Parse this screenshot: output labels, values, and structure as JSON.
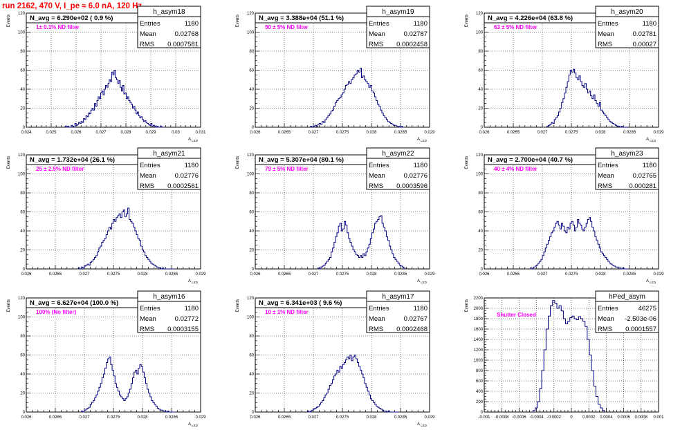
{
  "page": {
    "title": "run 2162,   470 V, I_pe ≈ 6.0 nA, 120 Hz"
  },
  "chart_data": [
    {
      "type": "histogram",
      "name": "h_asym18",
      "avg_label": "N_avg = 6.290e+02 ( 0.9 %)",
      "filter_label": "1± 0.1% ND filter",
      "stats": {
        "Entries": "1180",
        "Mean": "0.02768",
        "RMS": "0.0007581"
      },
      "ylabel": "Events",
      "xlabel": "A_LED",
      "xlim": [
        0.024,
        0.031
      ],
      "ylim": [
        0,
        120
      ],
      "xmajor": 0.001,
      "xtick_labels": [
        "0.024",
        "0.025",
        "0.026",
        "0.027",
        "0.028",
        "0.029",
        "0.03",
        "0.031"
      ],
      "ytick_labels": [
        "0",
        "20",
        "40",
        "60",
        "80",
        "100",
        "120"
      ],
      "bin_edges": [
        0.02556,
        0.02954
      ],
      "values": [
        1,
        0,
        1,
        0,
        0,
        2,
        1,
        0,
        4,
        2,
        3,
        5,
        4,
        6,
        5,
        9,
        8,
        12,
        11,
        15,
        14,
        18,
        20,
        18,
        25,
        22,
        28,
        32,
        30,
        36,
        38,
        34,
        40,
        44,
        42,
        46,
        50,
        48,
        58,
        55,
        60,
        52,
        50,
        46,
        49,
        42,
        38,
        44,
        35,
        36,
        30,
        32,
        28,
        26,
        24,
        20,
        22,
        18,
        14,
        16,
        12,
        10,
        11,
        8,
        6,
        7,
        5,
        4,
        3,
        2,
        4,
        1,
        2,
        1,
        0,
        1,
        0,
        0,
        1,
        0,
        0
      ]
    },
    {
      "type": "histogram",
      "name": "h_asym19",
      "avg_label": "N_avg = 3.388e+04 (51.1 %)",
      "filter_label": "50 ± 5% ND filter",
      "stats": {
        "Entries": "1180",
        "Mean": "0.02787",
        "RMS": "0.0002458"
      },
      "ylabel": "Events",
      "xlabel": "A_LED",
      "xlim": [
        0.026,
        0.029
      ],
      "ylim": [
        0,
        120
      ],
      "xmajor": 0.0005,
      "xtick_labels": [
        "0.026",
        "0.0265",
        "0.027",
        "0.0275",
        "0.028",
        "0.0285",
        "0.029"
      ],
      "ytick_labels": [
        "0",
        "20",
        "40",
        "60",
        "80",
        "100",
        "120"
      ],
      "bin_edges": [
        0.02695,
        0.02858
      ],
      "values": [
        1,
        0,
        1,
        2,
        1,
        3,
        4,
        3,
        6,
        5,
        8,
        10,
        12,
        14,
        17,
        18,
        22,
        26,
        28,
        30,
        31,
        34,
        36,
        40,
        44,
        45,
        48,
        46,
        50,
        52,
        55,
        56,
        60,
        58,
        62,
        52,
        54,
        50,
        48,
        46,
        42,
        44,
        38,
        36,
        32,
        28,
        24,
        22,
        18,
        15,
        12,
        10,
        8,
        6,
        5,
        4,
        3,
        2,
        2,
        1,
        1,
        0,
        1,
        0,
        0
      ]
    },
    {
      "type": "histogram",
      "name": "h_asym20",
      "avg_label": "N_avg = 4.226e+04 (63.8 %)",
      "filter_label": "63 ± 5% ND filter",
      "stats": {
        "Entries": "1180",
        "Mean": "0.02781",
        "RMS": "0.00027"
      },
      "ylabel": "Events",
      "xlabel": "A_LED",
      "xlim": [
        0.026,
        0.029
      ],
      "ylim": [
        0,
        120
      ],
      "xmajor": 0.0005,
      "xtick_labels": [
        "0.026",
        "0.0265",
        "0.027",
        "0.0275",
        "0.028",
        "0.0285",
        "0.029"
      ],
      "ytick_labels": [
        "0",
        "20",
        "40",
        "60",
        "80",
        "100",
        "120"
      ],
      "bin_edges": [
        0.02708,
        0.02848
      ],
      "values": [
        1,
        2,
        3,
        5,
        4,
        8,
        10,
        12,
        16,
        20,
        26,
        30,
        36,
        42,
        48,
        55,
        60,
        58,
        61,
        57,
        52,
        50,
        54,
        48,
        44,
        42,
        46,
        40,
        36,
        38,
        33,
        30,
        34,
        28,
        25,
        22,
        26,
        18,
        16,
        14,
        12,
        10,
        8,
        6,
        5,
        4,
        3,
        2,
        1,
        1,
        0,
        1,
        0,
        0,
        0,
        0
      ]
    },
    {
      "type": "histogram",
      "name": "h_asym21",
      "avg_label": "N_avg = 1.732e+04 (26.1 %)",
      "filter_label": "25 ± 2.5% ND filter",
      "stats": {
        "Entries": "1180",
        "Mean": "0.02776",
        "RMS": "0.0002561"
      },
      "ylabel": "Events",
      "xlabel": "A_LED",
      "xlim": [
        0.026,
        0.029
      ],
      "ylim": [
        0,
        120
      ],
      "xmajor": 0.0005,
      "xtick_labels": [
        "0.026",
        "0.0265",
        "0.027",
        "0.0275",
        "0.028",
        "0.0285",
        "0.029"
      ],
      "ytick_labels": [
        "0",
        "20",
        "40",
        "60",
        "80",
        "100",
        "120"
      ],
      "bin_edges": [
        0.0269,
        0.02854
      ],
      "values": [
        1,
        0,
        2,
        1,
        3,
        4,
        5,
        4,
        7,
        8,
        10,
        12,
        14,
        18,
        22,
        24,
        28,
        30,
        32,
        36,
        40,
        44,
        42,
        48,
        52,
        50,
        54,
        56,
        58,
        54,
        60,
        62,
        55,
        58,
        64,
        52,
        50,
        48,
        44,
        40,
        36,
        32,
        30,
        24,
        20,
        18,
        14,
        12,
        10,
        8,
        6,
        5,
        4,
        3,
        2,
        1,
        1,
        0,
        1,
        0,
        0,
        0,
        0,
        0,
        0,
        0
      ]
    },
    {
      "type": "histogram",
      "name": "h_asym22",
      "avg_label": "N_avg = 5.307e+04 (80.1 %)",
      "filter_label": "79 ± 5% ND filter",
      "stats": {
        "Entries": "1180",
        "Mean": "0.02776",
        "RMS": "0.0003596"
      },
      "ylabel": "Events",
      "xlabel": "A_LED",
      "xlim": [
        0.026,
        0.029
      ],
      "ylim": [
        0,
        120
      ],
      "xmajor": 0.0005,
      "xtick_labels": [
        "0.026",
        "0.0265",
        "0.027",
        "0.0275",
        "0.028",
        "0.0285",
        "0.029"
      ],
      "ytick_labels": [
        "0",
        "20",
        "40",
        "60",
        "80",
        "100",
        "120"
      ],
      "bin_edges": [
        0.02708,
        0.02858
      ],
      "values": [
        1,
        0,
        2,
        3,
        4,
        6,
        8,
        10,
        12,
        18,
        22,
        28,
        34,
        38,
        45,
        48,
        40,
        42,
        50,
        46,
        38,
        32,
        28,
        24,
        20,
        18,
        15,
        14,
        12,
        14,
        12,
        16,
        14,
        18,
        22,
        26,
        32,
        38,
        42,
        48,
        50,
        52,
        55,
        56,
        48,
        44,
        40,
        34,
        30,
        24,
        20,
        16,
        12,
        10,
        8,
        6,
        4,
        3,
        2,
        1
      ]
    },
    {
      "type": "histogram",
      "name": "h_asym23",
      "avg_label": "N_avg = 2.700e+04 (40.7 %)",
      "filter_label": "40 ± 4% ND filter",
      "stats": {
        "Entries": "1180",
        "Mean": "0.02765",
        "RMS": "0.000281"
      },
      "ylabel": "Events",
      "xlabel": "A_LED",
      "xlim": [
        0.026,
        0.029
      ],
      "ylim": [
        0,
        120
      ],
      "xmajor": 0.0005,
      "xtick_labels": [
        "0.026",
        "0.0265",
        "0.027",
        "0.0275",
        "0.028",
        "0.0285",
        "0.029"
      ],
      "ytick_labels": [
        "0",
        "20",
        "40",
        "60",
        "80",
        "100",
        "120"
      ],
      "bin_edges": [
        0.0268,
        0.02848
      ],
      "values": [
        1,
        0,
        2,
        3,
        4,
        6,
        8,
        10,
        14,
        18,
        22,
        26,
        30,
        34,
        38,
        40,
        44,
        48,
        50,
        46,
        42,
        48,
        45,
        40,
        38,
        44,
        42,
        48,
        50,
        46,
        40,
        44,
        52,
        48,
        46,
        42,
        40,
        44,
        48,
        52,
        54,
        50,
        44,
        40,
        34,
        30,
        26,
        22,
        18,
        16,
        14,
        12,
        10,
        8,
        6,
        5,
        4,
        3,
        2,
        2,
        1,
        1,
        0,
        1,
        0,
        0,
        0
      ]
    },
    {
      "type": "histogram",
      "name": "h_asym16",
      "avg_label": "N_avg = 6.627e+04 (100.0 %)",
      "filter_label": "100% (No filter)",
      "stats": {
        "Entries": "1180",
        "Mean": "0.02772",
        "RMS": "0.0003155"
      },
      "ylabel": "Events",
      "xlabel": "A_LED",
      "xlim": [
        0.026,
        0.029
      ],
      "ylim": [
        0,
        120
      ],
      "xmajor": 0.0005,
      "xtick_labels": [
        "0.026",
        "0.0265",
        "0.027",
        "0.0275",
        "0.028",
        "0.0285",
        "0.029"
      ],
      "ytick_labels": [
        "0",
        "20",
        "40",
        "60",
        "80",
        "100",
        "120"
      ],
      "bin_edges": [
        0.02695,
        0.02858
      ],
      "values": [
        1,
        0,
        2,
        3,
        4,
        5,
        8,
        10,
        12,
        15,
        18,
        22,
        26,
        30,
        36,
        40,
        46,
        52,
        56,
        58,
        50,
        44,
        38,
        30,
        26,
        22,
        18,
        16,
        14,
        12,
        14,
        16,
        20,
        24,
        30,
        36,
        42,
        44,
        40,
        46,
        50,
        48,
        42,
        36,
        30,
        24,
        20,
        16,
        12,
        10,
        8,
        6,
        4,
        3,
        2,
        2,
        1,
        1,
        0,
        1,
        0,
        0,
        0,
        0,
        0
      ]
    },
    {
      "type": "histogram",
      "name": "h_asym17",
      "avg_label": "N_avg = 6.341e+03 ( 9.6 %)",
      "filter_label": "10 ± 1% ND filter",
      "stats": {
        "Entries": "1180",
        "Mean": "0.02767",
        "RMS": "0.0002468"
      },
      "ylabel": "Events",
      "xlabel": "A_LED",
      "xlim": [
        0.026,
        0.029
      ],
      "ylim": [
        0,
        120
      ],
      "xmajor": 0.0005,
      "xtick_labels": [
        "0.026",
        "0.0265",
        "0.027",
        "0.0275",
        "0.028",
        "0.0285",
        "0.029"
      ],
      "ytick_labels": [
        "0",
        "20",
        "40",
        "60",
        "80",
        "100",
        "120"
      ],
      "bin_edges": [
        0.0269,
        0.02846
      ],
      "values": [
        1,
        0,
        1,
        2,
        3,
        4,
        5,
        6,
        8,
        10,
        12,
        15,
        18,
        20,
        24,
        28,
        30,
        34,
        38,
        40,
        44,
        42,
        48,
        46,
        50,
        52,
        55,
        58,
        56,
        60,
        54,
        58,
        60,
        56,
        52,
        48,
        44,
        40,
        36,
        30,
        26,
        22,
        18,
        14,
        12,
        10,
        8,
        6,
        5,
        4,
        3,
        2,
        1,
        1,
        0,
        1,
        0,
        0,
        0,
        0,
        0,
        0
      ]
    },
    {
      "type": "histogram",
      "name": "hPed_asym",
      "avg_label": "",
      "filter_label": "Shutter Closed",
      "stats": {
        "Entries": "46275",
        "Mean": "-2.503e-06",
        "RMS": "0.0001557"
      },
      "ylabel": "Events",
      "xlabel": "",
      "xlim": [
        -0.001,
        0.001
      ],
      "ylim": [
        0,
        2200
      ],
      "xmajor": 0.0002,
      "xtick_labels": [
        "-0.001",
        "-0.0008",
        "-0.0006",
        "-0.0004",
        "-0.0002",
        "0",
        "0.0002",
        "0.0004",
        "0.0006",
        "0.0008",
        "0.001"
      ],
      "ytick_labels": [
        "0",
        "200",
        "400",
        "600",
        "800",
        "1000",
        "1200",
        "1400",
        "1600",
        "1800",
        "2000",
        "2200"
      ],
      "bin_edges": [
        -0.00044,
        0.00038
      ],
      "values": [
        30,
        80,
        200,
        450,
        800,
        1200,
        1600,
        1850,
        2050,
        2150,
        2100,
        2000,
        2050,
        1950,
        1800,
        1700,
        1750,
        1820,
        1850,
        1800,
        1780,
        1840,
        1800,
        1750,
        1650,
        1400,
        1100,
        800,
        500,
        300,
        150,
        80,
        30
      ]
    }
  ]
}
